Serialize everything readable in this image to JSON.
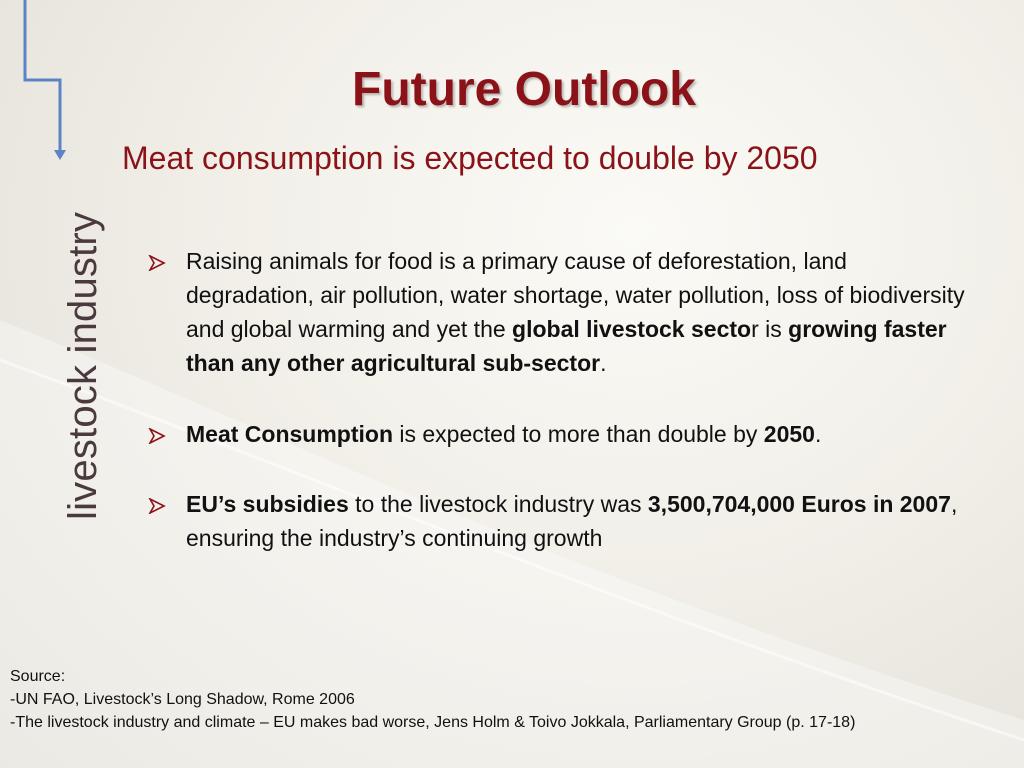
{
  "title": "Future Outlook",
  "subtitle": "Meat consumption is expected to double by 2050",
  "side_label": "livestock industry",
  "bullets": [
    {
      "parts": [
        {
          "text": "Raising animals for food is a primary cause of deforestation, land degradation, air pollution, water shortage, water pollution, loss of biodiversity and global warming and yet the ",
          "bold": false
        },
        {
          "text": "global livestock secto",
          "bold": true
        },
        {
          "text": "r is ",
          "bold": false
        },
        {
          "text": "growing faster than any other agricultural sub-sector",
          "bold": true
        },
        {
          "text": ".",
          "bold": false
        }
      ]
    },
    {
      "parts": [
        {
          "text": "Meat Consumption",
          "bold": true
        },
        {
          "text": " is expected to more than double by ",
          "bold": false
        },
        {
          "text": "2050",
          "bold": true
        },
        {
          "text": ".",
          "bold": false
        }
      ]
    },
    {
      "parts": [
        {
          "text": "EU’s subsidies",
          "bold": true
        },
        {
          "text": " to the livestock industry was ",
          "bold": false
        },
        {
          "text": "3,500,704,000 Euros in 2007",
          "bold": true
        },
        {
          "text": ",  ensuring  the industry’s continuing growth",
          "bold": false
        }
      ]
    }
  ],
  "source": {
    "heading": "Source:",
    "lines": [
      "-UN FAO, Livestock’s Long Shadow, Rome 2006",
      "-The livestock industry and climate – EU makes bad worse, Jens Holm & Toivo Jokkala, Parliamentary Group (p. 17-18)"
    ]
  },
  "colors": {
    "title": "#8b1218",
    "accent_line": "#5b84c4",
    "bullet_arrow": "#8b1218"
  },
  "icons": {
    "bullet": "arrow-bullet-icon",
    "connector": "down-arrow-connector-icon"
  }
}
